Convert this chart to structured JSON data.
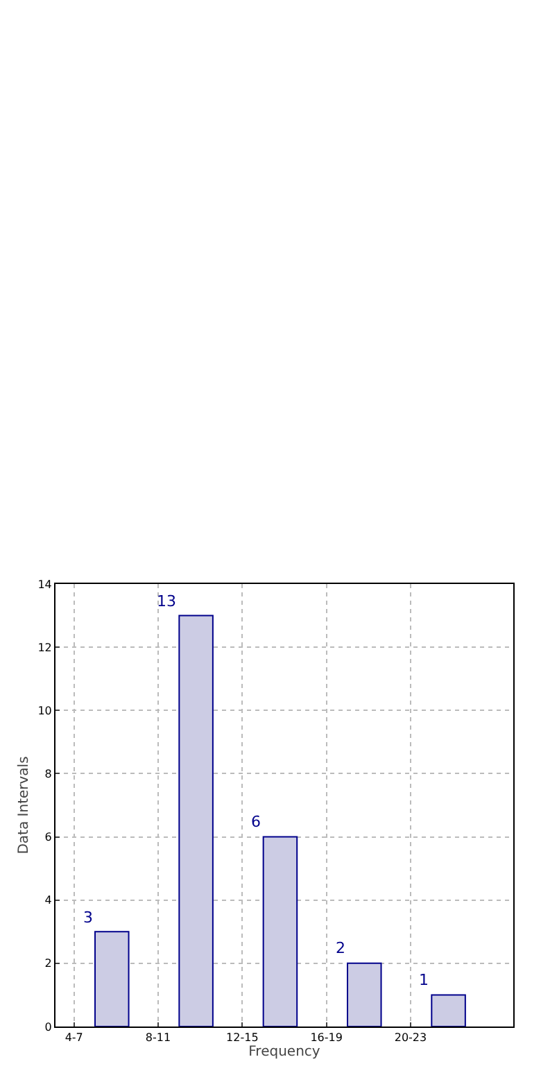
{
  "chart_data": {
    "type": "bar",
    "xlabel": "Frequency",
    "ylabel": "Data Intervals",
    "categories": [
      "4-7",
      "8-11",
      "12-15",
      "16-19",
      "20-23"
    ],
    "values": [
      3,
      13,
      6,
      2,
      1
    ],
    "color": "#cccce4",
    "data_labels": true,
    "ylim": [
      0,
      14
    ],
    "yticks": [
      0,
      2,
      4,
      6,
      8,
      10,
      12,
      14
    ],
    "grid": true
  }
}
